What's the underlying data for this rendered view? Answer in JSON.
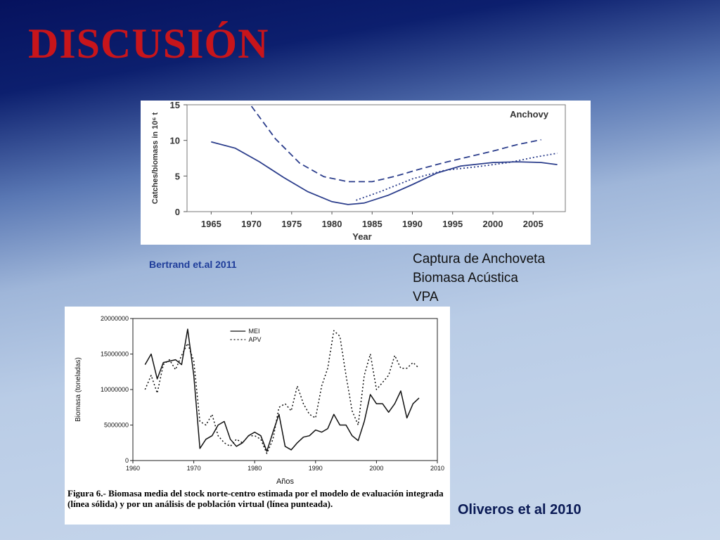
{
  "slide": {
    "title": "Discusión",
    "citation_top": "Bertrand et.al 2011",
    "legend_lines": [
      "Captura de Anchoveta",
      "Biomasa Acústica",
      "VPA"
    ],
    "citation_bottom": "Oliveros et al 2010",
    "caption": "Figura 6.- Biomasa media del stock norte-centro estimada por el modelo de evaluación integrada (línea sólida) y por un análisis de población virtual (línea punteada)."
  },
  "colors": {
    "title": "#c8151b",
    "chart1_line": "#2c3e8c",
    "chart2_line": "#111111"
  },
  "chart_data": [
    {
      "type": "line",
      "title": "Anchovy",
      "xlabel": "Year",
      "ylabel": "Catches/biomass in 10⁶ t",
      "xlim": [
        1962,
        2009
      ],
      "ylim": [
        0,
        15
      ],
      "xticks": [
        1965,
        1970,
        1975,
        1980,
        1985,
        1990,
        1995,
        2000,
        2005
      ],
      "yticks": [
        0,
        5,
        10,
        15
      ],
      "series": [
        {
          "name": "Captura de Anchoveta",
          "style": "solid",
          "x": [
            1965,
            1968,
            1971,
            1974,
            1977,
            1980,
            1982,
            1984,
            1987,
            1990,
            1993,
            1996,
            2000,
            2003,
            2006,
            2008
          ],
          "y": [
            9.8,
            8.9,
            7.0,
            4.8,
            2.8,
            1.4,
            1.0,
            1.2,
            2.3,
            3.8,
            5.4,
            6.4,
            6.9,
            7.0,
            6.9,
            6.6
          ]
        },
        {
          "name": "Biomasa Acústica",
          "style": "dashed",
          "x": [
            1970,
            1973,
            1976,
            1979,
            1982,
            1985,
            1988,
            1991,
            1994,
            1997,
            2000,
            2003,
            2006
          ],
          "y": [
            14.8,
            10.2,
            6.8,
            4.9,
            4.2,
            4.2,
            5.0,
            6.0,
            6.9,
            7.7,
            8.5,
            9.4,
            10.1
          ]
        },
        {
          "name": "VPA",
          "style": "dotted",
          "x": [
            1983,
            1986,
            1990,
            1994,
            1998,
            2002,
            2005,
            2008
          ],
          "y": [
            1.6,
            2.8,
            4.6,
            5.8,
            6.3,
            6.9,
            7.6,
            8.2
          ]
        }
      ]
    },
    {
      "type": "line",
      "title": "",
      "xlabel": "Años",
      "ylabel": "Biomasa (toneladas)",
      "xlim": [
        1960,
        2010
      ],
      "ylim": [
        0,
        20000000
      ],
      "xticks": [
        1960,
        1970,
        1980,
        1990,
        2000,
        2010
      ],
      "yticks": [
        0,
        5000000,
        10000000,
        15000000,
        20000000
      ],
      "legend": [
        "MEI",
        "APV"
      ],
      "series": [
        {
          "name": "MEI",
          "style": "solid",
          "x": [
            1962,
            1963,
            1964,
            1965,
            1966,
            1967,
            1968,
            1969,
            1970,
            1971,
            1972,
            1973,
            1974,
            1975,
            1976,
            1977,
            1978,
            1979,
            1980,
            1981,
            1982,
            1983,
            1984,
            1985,
            1986,
            1987,
            1988,
            1989,
            1990,
            1991,
            1992,
            1993,
            1994,
            1995,
            1996,
            1997,
            1998,
            1999,
            2000,
            2001,
            2002,
            2003,
            2004,
            2005,
            2006,
            2007
          ],
          "y": [
            13500000,
            15000000,
            11500000,
            13800000,
            14000000,
            14200000,
            13500000,
            18500000,
            12000000,
            1700000,
            3000000,
            3500000,
            5000000,
            5500000,
            3000000,
            2000000,
            2500000,
            3500000,
            4000000,
            3500000,
            1300000,
            4000000,
            6500000,
            2000000,
            1500000,
            2500000,
            3300000,
            3500000,
            4300000,
            4000000,
            4500000,
            6500000,
            5000000,
            5000000,
            3500000,
            2800000,
            5500000,
            9300000,
            8000000,
            8000000,
            6800000,
            8000000,
            9800000,
            6000000,
            8000000,
            8800000
          ]
        },
        {
          "name": "APV",
          "style": "dotted",
          "x": [
            1962,
            1963,
            1964,
            1965,
            1966,
            1967,
            1968,
            1969,
            1970,
            1971,
            1972,
            1973,
            1974,
            1975,
            1976,
            1977,
            1978,
            1979,
            1980,
            1981,
            1982,
            1983,
            1984,
            1985,
            1986,
            1987,
            1988,
            1989,
            1990,
            1991,
            1992,
            1993,
            1994,
            1995,
            1996,
            1997,
            1998,
            1999,
            2000,
            2001,
            2002,
            2003,
            2004,
            2005,
            2006,
            2007
          ],
          "y": [
            10000000,
            12000000,
            9500000,
            13500000,
            14200000,
            12800000,
            14800000,
            16500000,
            14000000,
            5500000,
            5000000,
            6500000,
            3500000,
            2500000,
            2000000,
            3000000,
            2500000,
            3500000,
            3500000,
            3000000,
            1000000,
            3000000,
            7500000,
            8000000,
            7000000,
            10500000,
            8000000,
            6500000,
            6000000,
            10500000,
            13000000,
            18300000,
            17500000,
            12000000,
            7000000,
            5000000,
            12000000,
            15000000,
            10000000,
            11000000,
            12000000,
            14800000,
            13000000,
            13000000,
            13800000,
            13000000
          ]
        }
      ]
    }
  ]
}
